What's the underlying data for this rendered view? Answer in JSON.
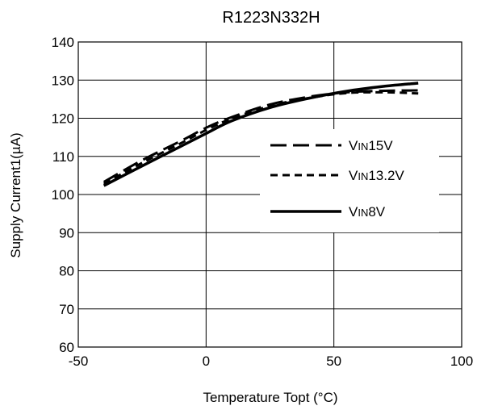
{
  "chart_data": {
    "type": "line",
    "title": "R1223N332H",
    "xlabel": "Temperature Topt (°C)",
    "ylabel": "Supply Current1(µA)",
    "xlim": [
      -50,
      100
    ],
    "ylim": [
      60,
      140
    ],
    "xticks": [
      -50,
      0,
      50,
      100
    ],
    "yticks": [
      60,
      70,
      80,
      90,
      100,
      110,
      120,
      130,
      140
    ],
    "grid": true,
    "legend_position": "center-right",
    "series": [
      {
        "name_prefix": "V",
        "name_sub": "IN",
        "name_suffix": "15V",
        "style": "long-dash",
        "x": [
          -40,
          -25,
          -10,
          0,
          10,
          25,
          40,
          55,
          70,
          83
        ],
        "y": [
          103.3,
          109.0,
          114.0,
          117.5,
          120.3,
          123.6,
          125.6,
          126.8,
          127.2,
          127.3
        ]
      },
      {
        "name_prefix": "V",
        "name_sub": "IN",
        "name_suffix": "13.2V",
        "style": "short-dash",
        "x": [
          -40,
          -25,
          -10,
          0,
          10,
          25,
          40,
          55,
          70,
          83
        ],
        "y": [
          102.8,
          108.3,
          113.4,
          116.9,
          119.9,
          123.2,
          125.3,
          126.6,
          126.8,
          126.5
        ]
      },
      {
        "name_prefix": "V",
        "name_sub": "IN",
        "name_suffix": "8V",
        "style": "solid",
        "x": [
          -40,
          -25,
          -10,
          0,
          10,
          25,
          40,
          55,
          70,
          83
        ],
        "y": [
          102.3,
          107.5,
          112.6,
          116.0,
          119.3,
          122.8,
          125.2,
          127.1,
          128.4,
          129.2
        ]
      }
    ]
  }
}
